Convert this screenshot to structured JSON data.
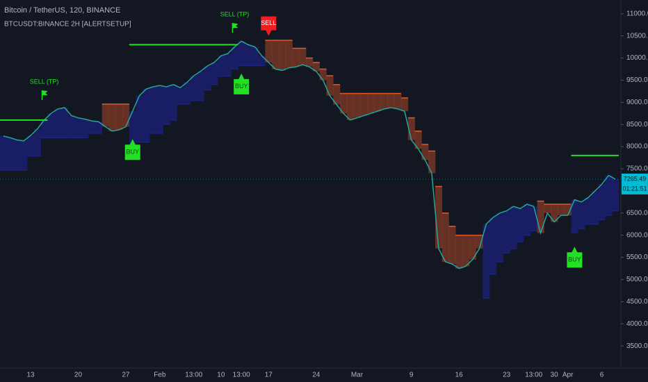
{
  "chart_data": {
    "type": "supertrend",
    "title": "Bitcoin / TetherUS, 120, BINANCE",
    "subtitle": "BTCUSDT:BINANCE 2H [ALERTSETUP]",
    "categories": [
      null,
      null,
      null,
      null,
      "13",
      null,
      null,
      null,
      null,
      null,
      null,
      "20",
      null,
      null,
      null,
      null,
      null,
      null,
      "27",
      null,
      null,
      null,
      null,
      "Feb",
      null,
      null,
      null,
      null,
      "13:00",
      null,
      null,
      null,
      "10",
      null,
      null,
      "13:00",
      null,
      null,
      null,
      "17",
      null,
      null,
      null,
      null,
      null,
      null,
      "24",
      null,
      null,
      null,
      null,
      null,
      "Mar",
      null,
      null,
      null,
      null,
      null,
      null,
      null,
      "9",
      null,
      null,
      null,
      null,
      null,
      null,
      "16",
      null,
      null,
      null,
      null,
      null,
      null,
      "23",
      null,
      null,
      null,
      "13:00",
      null,
      null,
      "30",
      null,
      "Apr",
      null,
      null,
      null,
      null,
      "6",
      null,
      null
    ],
    "series": [
      {
        "color": "#26a69a",
        "values": [
          8240,
          8200,
          8150,
          8130,
          8250,
          8400,
          8600,
          8750,
          8850,
          8880,
          8700,
          8650,
          8620,
          8580,
          8560,
          8450,
          8350,
          8380,
          8450,
          8800,
          9150,
          9300,
          9350,
          9380,
          9350,
          9400,
          9330,
          9450,
          9600,
          9700,
          9820,
          9900,
          10050,
          10100,
          10250,
          10380,
          10300,
          10250,
          10050,
          9900,
          9750,
          9720,
          9780,
          9800,
          9850,
          9800,
          9700,
          9500,
          9150,
          8950,
          8750,
          8600,
          8650,
          8700,
          8750,
          8800,
          8850,
          8880,
          8850,
          8800,
          8150,
          7950,
          7700,
          7400,
          5700,
          5400,
          5350,
          5250,
          5300,
          5450,
          5700,
          6250,
          6400,
          6500,
          6550,
          6650,
          6600,
          6700,
          6650,
          6050,
          6500,
          6300,
          6450,
          6450,
          6800,
          6750,
          6850,
          7000,
          7150,
          7350,
          7265
        ]
      },
      {
        "up_color": "#1c2280",
        "down_color": "#e0592a",
        "values": [
          7470,
          7470,
          7470,
          7470,
          7790,
          7790,
          8200,
          8200,
          8200,
          8200,
          8200,
          8200,
          8200,
          8300,
          8300,
          8960,
          8960,
          8960,
          8960,
          7710,
          8100,
          8100,
          8300,
          8300,
          8500,
          8600,
          8960,
          8960,
          9040,
          9040,
          9280,
          9400,
          9590,
          9590,
          9750,
          9830,
          9830,
          9830,
          9830,
          10400,
          10400,
          10400,
          10400,
          10220,
          10220,
          10000,
          9900,
          9750,
          9600,
          9400,
          9200,
          9200,
          9200,
          9200,
          9200,
          9200,
          9200,
          9200,
          9200,
          9100,
          8650,
          8350,
          8050,
          7900,
          7100,
          6500,
          6200,
          6000,
          6000,
          6000,
          6000,
          4580,
          5120,
          5400,
          5600,
          5700,
          5850,
          6000,
          6100,
          6770,
          6700,
          6700,
          6700,
          6700,
          6060,
          6150,
          6250,
          6250,
          6350,
          6450,
          6550
        ]
      }
    ],
    "levels": [
      {
        "value": 8600,
        "from": 0,
        "to": 6
      },
      {
        "value": 10300,
        "from": 19,
        "to": 34
      },
      {
        "value": 7800,
        "from": 84,
        "to": 90
      }
    ],
    "level_color": "#22e022",
    "signals": [
      {
        "label": "SELL (TP)",
        "style": "flag",
        "at": 6,
        "y": 9050
      },
      {
        "label": "BUY",
        "style": "buy",
        "at": 19,
        "y": 8170
      },
      {
        "label": "SELL (TP)",
        "style": "flag",
        "at": 34,
        "y": 10570
      },
      {
        "label": "BUY",
        "style": "buy",
        "at": 35,
        "y": 9650
      },
      {
        "label": "SELL",
        "style": "sell",
        "at": 39,
        "y": 10500
      },
      {
        "label": "BUY",
        "style": "buy",
        "at": 84,
        "y": 5740
      }
    ],
    "last_price": 7265.49,
    "countdown": "01:21:51",
    "ylim": [
      3000,
      11310
    ],
    "yticks": [
      {
        "value": 3500,
        "label": "3500.00"
      },
      {
        "value": 4000,
        "label": "4000.00"
      },
      {
        "value": 4500,
        "label": "4500.00"
      },
      {
        "value": 5000,
        "label": "5000.00"
      },
      {
        "value": 5500,
        "label": "5500.00"
      },
      {
        "value": 6000,
        "label": "6000.00"
      },
      {
        "value": 6500,
        "label": "6500.00"
      },
      {
        "value": 7000,
        "label": "7000.00"
      },
      {
        "value": 7500,
        "label": "7500.00"
      },
      {
        "value": 8000,
        "label": "8000.00"
      },
      {
        "value": 8500,
        "label": "8500.00"
      },
      {
        "value": 9000,
        "label": "9000.00"
      },
      {
        "value": 9500,
        "label": "9500.00"
      },
      {
        "value": 10000,
        "label": "10000.00"
      },
      {
        "value": 10500,
        "label": "10500.00"
      },
      {
        "value": 11000,
        "label": "11000.00"
      }
    ],
    "grid": false
  }
}
